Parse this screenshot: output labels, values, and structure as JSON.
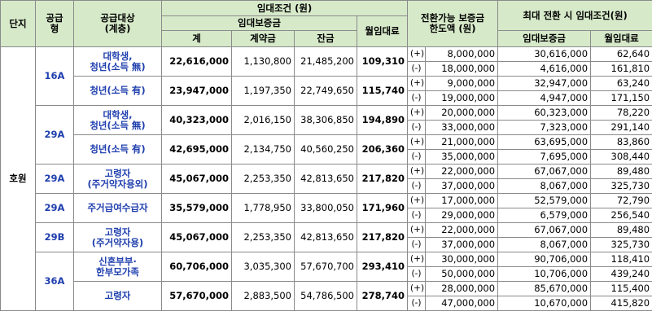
{
  "headers": {
    "complex": "단지",
    "supply_type": "공급\n형",
    "target": "공급대상\n(계층)",
    "rent_conditions": "임대조건 (원)",
    "deposit": "임대보증금",
    "total": "계",
    "contract": "계약금",
    "balance": "잔금",
    "monthly_rent": "월임대료",
    "convertible_limit": "전환가능 보증금\n한도액 (원)",
    "max_conversion": "최대 전환 시 임대조건(원)",
    "max_deposit": "임대보증금",
    "max_monthly": "월임대료"
  },
  "complex_name": "호원",
  "groups": [
    {
      "type": "16A",
      "rows": [
        {
          "target": "대학생,\n청년(소득 無)",
          "total": "22,616,000",
          "contract": "1,130,800",
          "balance": "21,485,200",
          "rent": "109,310",
          "conv": [
            {
              "sign": "(+)",
              "limit": "8,000,000",
              "deposit": "30,616,000",
              "monthly": "62,640"
            },
            {
              "sign": "(-)",
              "limit": "18,000,000",
              "deposit": "4,616,000",
              "monthly": "161,810"
            }
          ]
        },
        {
          "target": "청년(소득 有)",
          "total": "23,947,000",
          "contract": "1,197,350",
          "balance": "22,749,650",
          "rent": "115,740",
          "conv": [
            {
              "sign": "(+)",
              "limit": "9,000,000",
              "deposit": "32,947,000",
              "monthly": "63,240"
            },
            {
              "sign": "(-)",
              "limit": "19,000,000",
              "deposit": "4,947,000",
              "monthly": "171,150"
            }
          ]
        }
      ]
    },
    {
      "type": "29A",
      "rows": [
        {
          "target": "대학생,\n청년(소득 無)",
          "total": "40,323,000",
          "contract": "2,016,150",
          "balance": "38,306,850",
          "rent": "194,890",
          "conv": [
            {
              "sign": "(+)",
              "limit": "20,000,000",
              "deposit": "60,323,000",
              "monthly": "78,220"
            },
            {
              "sign": "(-)",
              "limit": "33,000,000",
              "deposit": "7,323,000",
              "monthly": "291,140"
            }
          ]
        },
        {
          "target": "청년(소득 有)",
          "total": "42,695,000",
          "contract": "2,134,750",
          "balance": "40,560,250",
          "rent": "206,360",
          "conv": [
            {
              "sign": "(+)",
              "limit": "21,000,000",
              "deposit": "63,695,000",
              "monthly": "83,860"
            },
            {
              "sign": "(-)",
              "limit": "35,000,000",
              "deposit": "7,695,000",
              "monthly": "308,440"
            }
          ]
        }
      ]
    },
    {
      "type": "29A",
      "rows": [
        {
          "target": "고령자\n(주거약자용외)",
          "total": "45,067,000",
          "contract": "2,253,350",
          "balance": "42,813,650",
          "rent": "217,820",
          "conv": [
            {
              "sign": "(+)",
              "limit": "22,000,000",
              "deposit": "67,067,000",
              "monthly": "89,480"
            },
            {
              "sign": "(-)",
              "limit": "37,000,000",
              "deposit": "8,067,000",
              "monthly": "325,730"
            }
          ]
        }
      ]
    },
    {
      "type": "29A",
      "rows": [
        {
          "target": "주거급여수급자",
          "total": "35,579,000",
          "contract": "1,778,950",
          "balance": "33,800,050",
          "rent": "171,960",
          "conv": [
            {
              "sign": "(+)",
              "limit": "17,000,000",
              "deposit": "52,579,000",
              "monthly": "72,790"
            },
            {
              "sign": "(-)",
              "limit": "29,000,000",
              "deposit": "6,579,000",
              "monthly": "256,540"
            }
          ]
        }
      ]
    },
    {
      "type": "29B",
      "rows": [
        {
          "target": "고령자\n(주거약자용)",
          "total": "45,067,000",
          "contract": "2,253,350",
          "balance": "42,813,650",
          "rent": "217,820",
          "conv": [
            {
              "sign": "(+)",
              "limit": "22,000,000",
              "deposit": "67,067,000",
              "monthly": "89,480"
            },
            {
              "sign": "(-)",
              "limit": "37,000,000",
              "deposit": "8,067,000",
              "monthly": "325,730"
            }
          ]
        }
      ]
    },
    {
      "type": "36A",
      "rows": [
        {
          "target": "신혼부부·\n한부모가족",
          "total": "60,706,000",
          "contract": "3,035,300",
          "balance": "57,670,700",
          "rent": "293,410",
          "conv": [
            {
              "sign": "(+)",
              "limit": "30,000,000",
              "deposit": "90,706,000",
              "monthly": "118,410"
            },
            {
              "sign": "(-)",
              "limit": "50,000,000",
              "deposit": "10,706,000",
              "monthly": "439,240"
            }
          ]
        },
        {
          "target": "고령자",
          "total": "57,670,000",
          "contract": "2,883,500",
          "balance": "54,786,500",
          "rent": "278,740",
          "conv": [
            {
              "sign": "(+)",
              "limit": "28,000,000",
              "deposit": "85,670,000",
              "monthly": "115,400"
            },
            {
              "sign": "(-)",
              "limit": "47,000,000",
              "deposit": "10,670,000",
              "monthly": "415,820"
            }
          ]
        }
      ]
    }
  ]
}
